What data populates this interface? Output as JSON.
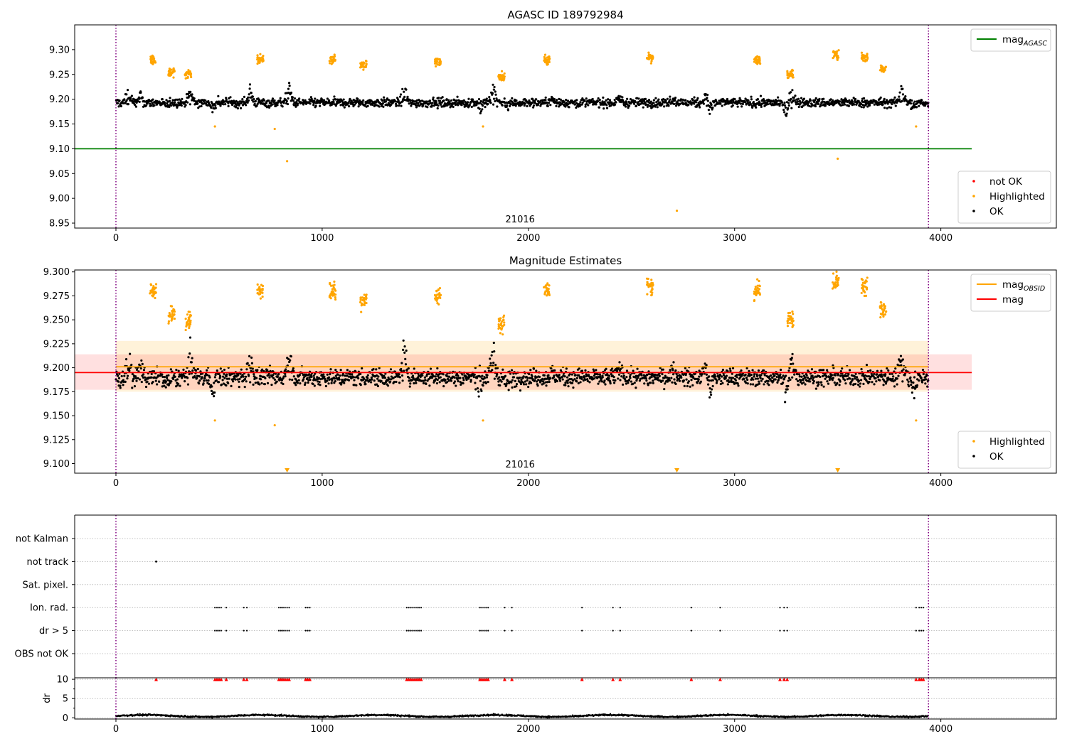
{
  "figure": {
    "title": "AGASC ID 189792984"
  },
  "chart_data": [
    {
      "type": "scatter",
      "panel": "top",
      "title": "",
      "xlabel": "",
      "ylabel": "",
      "xlim": [
        -200,
        4560
      ],
      "ylim": [
        8.94,
        9.35
      ],
      "xticks": [
        0,
        1000,
        2000,
        3000,
        4000
      ],
      "yticks": [
        8.95,
        9.0,
        9.05,
        9.1,
        9.15,
        9.2,
        9.25,
        9.3
      ],
      "ytick_decimals": 2,
      "obsid_label": "21016",
      "obsid_label_x": 1960,
      "obs_boundaries": [
        0,
        3940
      ],
      "hlines": [
        {
          "name": "mag_AGASC",
          "y": 9.1,
          "x0": -200,
          "x1": 4150,
          "color": "#008000"
        }
      ],
      "series": [
        {
          "name": "not OK",
          "color": "#ff0000",
          "points": []
        },
        {
          "name": "Highlighted",
          "color": "#ffa500",
          "cluster_x": [
            180,
            270,
            350,
            700,
            1050,
            1200,
            1560,
            1870,
            2090,
            2590,
            3110,
            3270,
            3490,
            3630,
            3720
          ],
          "cluster_y": [
            9.28,
            9.255,
            9.25,
            9.28,
            9.28,
            9.27,
            9.275,
            9.245,
            9.28,
            9.285,
            9.28,
            9.25,
            9.29,
            9.285,
            9.26
          ],
          "outliers": [
            [
              830,
              9.075
            ],
            [
              770,
              9.14
            ],
            [
              2720,
              8.975
            ],
            [
              3500,
              9.08
            ],
            [
              1780,
              9.145
            ],
            [
              480,
              9.145
            ],
            [
              3880,
              9.145
            ]
          ]
        },
        {
          "name": "OK",
          "color": "#000000",
          "baseline": 9.193
        }
      ],
      "legends": [
        {
          "location": "upper-right",
          "entries": [
            {
              "label": "mag",
              "subscript": "AGASC",
              "color": "#008000",
              "marker": "line"
            }
          ]
        },
        {
          "location": "lower-right",
          "entries": [
            {
              "label": "not OK",
              "color": "#ff0000",
              "marker": "dot"
            },
            {
              "label": "Highlighted",
              "color": "#ffa500",
              "marker": "dot"
            },
            {
              "label": "OK",
              "color": "#000000",
              "marker": "dot"
            }
          ]
        }
      ]
    },
    {
      "type": "scatter",
      "panel": "middle",
      "title": "Magnitude Estimates",
      "xlabel": "",
      "ylabel": "",
      "xlim": [
        -200,
        4560
      ],
      "ylim": [
        9.09,
        9.302
      ],
      "xticks": [
        0,
        1000,
        2000,
        3000,
        4000
      ],
      "yticks": [
        9.1,
        9.125,
        9.15,
        9.175,
        9.2,
        9.225,
        9.25,
        9.275,
        9.3
      ],
      "ytick_decimals": 3,
      "obsid_label": "21016",
      "obsid_label_x": 1960,
      "obs_boundaries": [
        0,
        3940
      ],
      "bands": [
        {
          "name": "mag_OBSID band",
          "y0": 9.175,
          "y1": 9.228,
          "x0": 0,
          "x1": 3940,
          "color": "#ffa500",
          "opacity": 0.15
        },
        {
          "name": "mag band",
          "y0": 9.177,
          "y1": 9.214,
          "x0": -200,
          "x1": 4150,
          "color": "#ff0000",
          "opacity": 0.12
        }
      ],
      "hlines": [
        {
          "name": "mag_OBSID",
          "y": 9.201,
          "x0": 0,
          "x1": 3940,
          "color": "#ffa500"
        },
        {
          "name": "mag",
          "y": 9.195,
          "x0": -200,
          "x1": 4150,
          "color": "#ff0000"
        }
      ],
      "offscale_markers_x": [
        830,
        2720,
        3500
      ],
      "legends": [
        {
          "location": "upper-right",
          "entries": [
            {
              "label": "mag",
              "subscript": "OBSID",
              "color": "#ffa500",
              "marker": "line"
            },
            {
              "label": "mag",
              "subscript": "",
              "color": "#ff0000",
              "marker": "line"
            }
          ]
        },
        {
          "location": "lower-right",
          "entries": [
            {
              "label": "Highlighted",
              "color": "#ffa500",
              "marker": "dot"
            },
            {
              "label": "OK",
              "color": "#000000",
              "marker": "dot"
            }
          ]
        }
      ]
    },
    {
      "type": "scatter",
      "panel": "flags",
      "xlim": [
        -200,
        4560
      ],
      "categories": [
        "not Kalman",
        "not track",
        "Sat. pixel.",
        "Ion. rad.",
        "dr > 5",
        "OBS not OK"
      ],
      "flag_points": {
        "not track": [
          195
        ],
        "Ion. rad.": [
          480,
          490,
          500,
          510,
          535,
          620,
          635,
          790,
          800,
          810,
          820,
          830,
          840,
          920,
          930,
          940,
          1410,
          1420,
          1430,
          1440,
          1450,
          1460,
          1470,
          1480,
          1765,
          1775,
          1785,
          1795,
          1805,
          1885,
          1920,
          2260,
          2410,
          2445,
          2790,
          2930,
          3220,
          3240,
          3255,
          3880,
          3895,
          3905,
          3915
        ],
        "dr > 5": [
          480,
          490,
          500,
          510,
          535,
          620,
          635,
          790,
          800,
          810,
          820,
          830,
          840,
          920,
          930,
          940,
          1410,
          1420,
          1430,
          1440,
          1450,
          1460,
          1470,
          1480,
          1765,
          1775,
          1785,
          1795,
          1805,
          1885,
          1920,
          2260,
          2410,
          2445,
          2790,
          2930,
          3220,
          3240,
          3255,
          3880,
          3895,
          3905,
          3915
        ]
      },
      "obs_boundaries": [
        0,
        3940
      ]
    },
    {
      "type": "scatter",
      "panel": "dr",
      "ylabel": "dr",
      "xlim": [
        -200,
        4560
      ],
      "ylim": [
        -0.3,
        10.2
      ],
      "xticks": [
        0,
        1000,
        2000,
        3000,
        4000
      ],
      "yticks": [
        0,
        5,
        10
      ],
      "clipped_markers_x": [
        195,
        480,
        490,
        500,
        510,
        535,
        620,
        635,
        790,
        800,
        810,
        820,
        830,
        840,
        920,
        930,
        940,
        1410,
        1420,
        1430,
        1440,
        1450,
        1460,
        1470,
        1480,
        1765,
        1775,
        1785,
        1795,
        1805,
        1885,
        1920,
        2260,
        2410,
        2445,
        2790,
        2930,
        3220,
        3240,
        3255,
        3880,
        3895,
        3905,
        3915
      ],
      "obs_boundaries": [
        0,
        3940
      ]
    }
  ]
}
